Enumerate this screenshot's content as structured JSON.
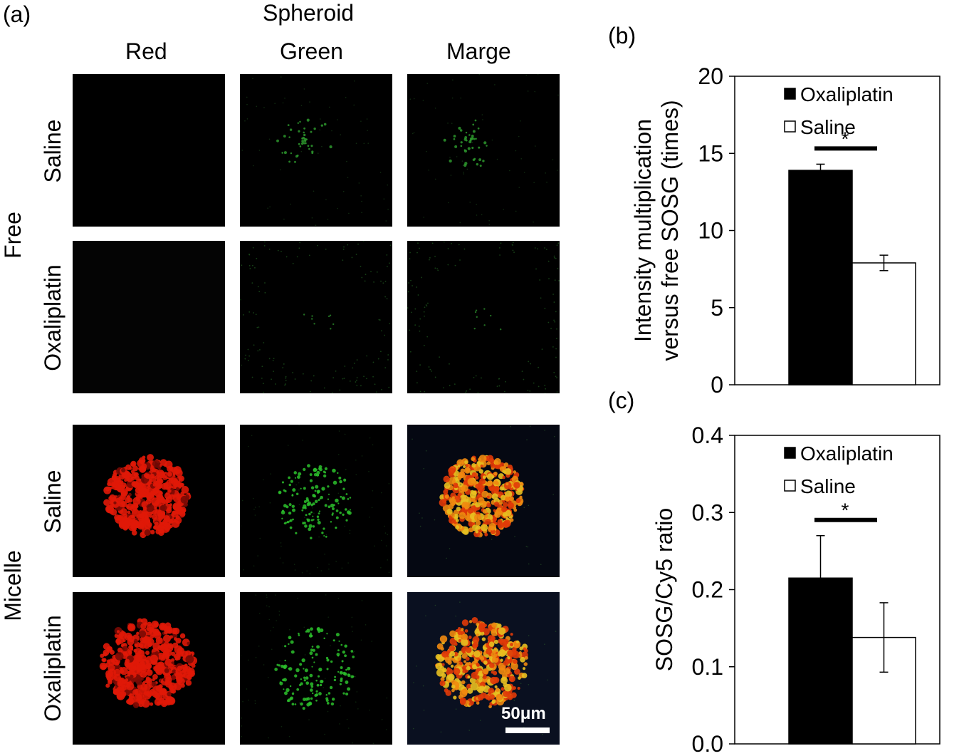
{
  "panel_a": {
    "label": "(a)",
    "super_header": "Spheroid",
    "columns": [
      "Red",
      "Green",
      "Marge"
    ],
    "groups": [
      {
        "name": "Free",
        "rows": [
          "Saline",
          "Oxaliplatin"
        ]
      },
      {
        "name": "Micelle",
        "rows": [
          "Saline",
          "Oxaliplatin"
        ]
      }
    ],
    "scale_bar": "50μm"
  },
  "chart_data": [
    {
      "type": "bar",
      "panel_label": "(b)",
      "ylabel_line1": "Intensity multiplication",
      "ylabel_line2": "versus free SOSG (times)",
      "ylim": [
        0,
        20
      ],
      "yticks": [
        "0",
        "5",
        "10",
        "15",
        "20"
      ],
      "yticks_values": [
        0,
        5,
        10,
        15,
        20
      ],
      "series": [
        {
          "name": "Oxaliplatin",
          "value": 13.9,
          "error": 0.4,
          "fill": "#000000"
        },
        {
          "name": "Saline",
          "value": 7.9,
          "error": 0.5,
          "fill": "#ffffff"
        }
      ],
      "significance": "*",
      "legend_position": "top-right"
    },
    {
      "type": "bar",
      "panel_label": "(c)",
      "ylabel": "SOSG/Cy5 ratio",
      "ylim": [
        0,
        0.4
      ],
      "yticks": [
        "0.0",
        "0.1",
        "0.2",
        "0.3",
        "0.4"
      ],
      "yticks_values": [
        0,
        0.1,
        0.2,
        0.3,
        0.4
      ],
      "series": [
        {
          "name": "Oxaliplatin",
          "value": 0.215,
          "error": 0.055,
          "fill": "#000000"
        },
        {
          "name": "Saline",
          "value": 0.138,
          "error": 0.045,
          "fill": "#ffffff"
        }
      ],
      "significance": "*",
      "legend_position": "top-right"
    }
  ]
}
